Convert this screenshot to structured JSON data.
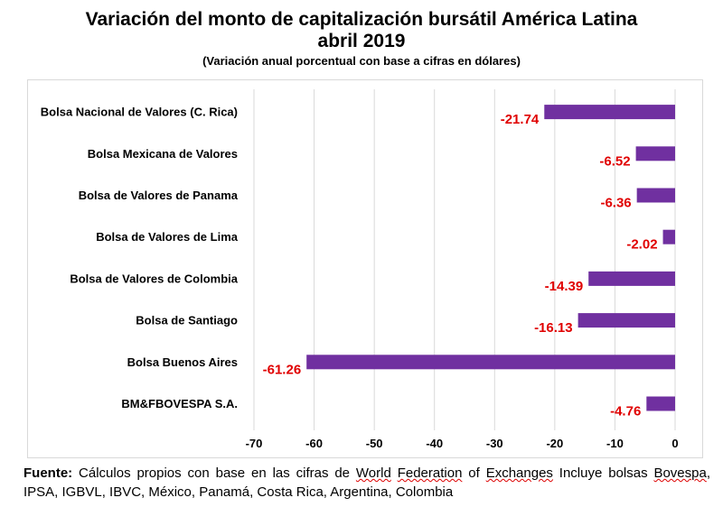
{
  "title_line1": "Variación del monto de capitalización bursátil América Latina",
  "title_line2": "abril 2019",
  "subtitle": "(Variación anual porcentual con base a cifras en dólares)",
  "source": {
    "label": "Fuente:",
    "text_1": " Cálculos propios con base en las cifras de ",
    "w1": "World",
    "s1": " ",
    "w2": "Federation",
    "s2": " of ",
    "w3": "Exchanges",
    "text_2": " Incluye bolsas ",
    "w4": "Bovespa",
    "text_3": ", IPSA, IGBVL, IBVC, México, Panamá, Costa  Rica, Argentina, Colombia"
  },
  "chart_data": {
    "type": "bar",
    "orientation": "horizontal",
    "categories": [
      "Bolsa Nacional de Valores (C. Rica)",
      "Bolsa Mexicana de Valores",
      "Bolsa de Valores de Panama",
      "Bolsa de Valores de Lima",
      "Bolsa de Valores de Colombia",
      "Bolsa de Santiago",
      "Bolsa Buenos Aires",
      "BM&FBOVESPA S.A."
    ],
    "values": [
      -21.74,
      -6.52,
      -6.36,
      -2.02,
      -14.39,
      -16.13,
      -61.26,
      -4.76
    ],
    "value_labels": [
      "-21.74",
      "-6.52",
      "-6.36",
      "-2.02",
      "-14.39",
      "-16.13",
      "-61.26",
      "-4.76"
    ],
    "xlim": [
      -70,
      0
    ],
    "xticks": [
      "-70",
      "-60",
      "-50",
      "-40",
      "-30",
      "-20",
      "-10",
      "0"
    ],
    "grid": true,
    "bar_color": "#7030a0",
    "label_color": "#e00000"
  }
}
